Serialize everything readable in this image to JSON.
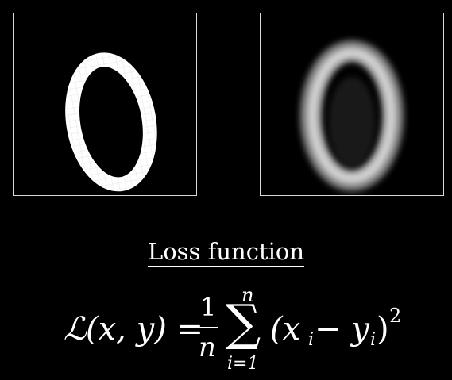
{
  "title": "Loss function",
  "images": {
    "left": {
      "description_icon": "digit-zero-original"
    },
    "right": {
      "description_icon": "digit-zero-reconstruction"
    }
  },
  "formula": {
    "lhs_symbol": "ℒ",
    "lhs_args": "(x, y) =",
    "frac_num": "1",
    "frac_den": "n",
    "sum_symbol": "∑",
    "sum_upper": "n",
    "sum_lower": "i=1",
    "summand_open": "(x",
    "summand_sub1": "i",
    "summand_minus": " − y",
    "summand_sub2": "i",
    "summand_close": ")",
    "exponent": "2"
  }
}
